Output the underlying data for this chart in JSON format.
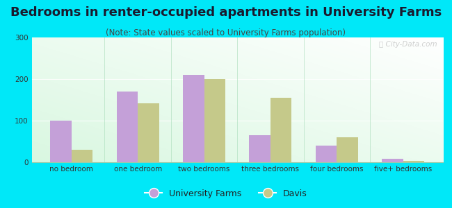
{
  "title": "Bedrooms in renter-occupied apartments in University Farms",
  "subtitle": "(Note: State values scaled to University Farms population)",
  "categories": [
    "no bedroom",
    "one bedroom",
    "two bedrooms",
    "three bedrooms",
    "four bedrooms",
    "five+ bedrooms"
  ],
  "university_farms": [
    100,
    170,
    210,
    65,
    40,
    8
  ],
  "davis": [
    30,
    142,
    200,
    155,
    60,
    4
  ],
  "uf_color": "#c4a0d8",
  "davis_color": "#c5c98a",
  "ylim": [
    0,
    300
  ],
  "yticks": [
    0,
    100,
    200,
    300
  ],
  "bg_color": "#00e8f8",
  "bar_width": 0.32,
  "title_fontsize": 13,
  "subtitle_fontsize": 8.5,
  "tick_fontsize": 7.5,
  "legend_fontsize": 9,
  "watermark": "ⓘ City-Data.com"
}
